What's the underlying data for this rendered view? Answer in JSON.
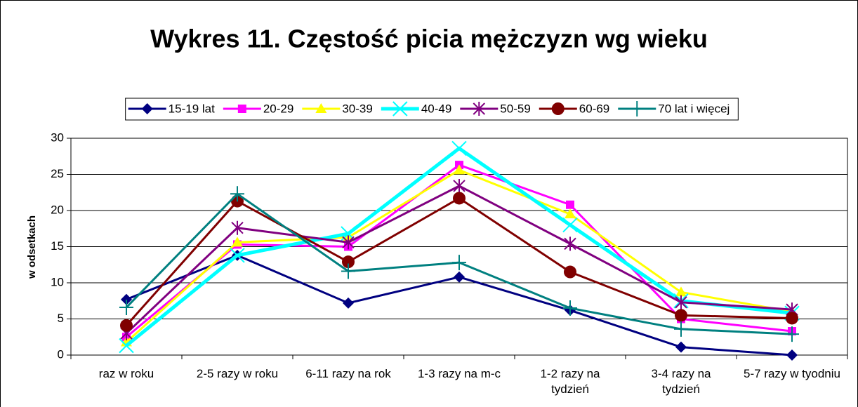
{
  "chart_data": {
    "type": "line",
    "title": "Wykres 11. Częstość picia mężczyzn wg wieku",
    "ylabel": "w odsetkach",
    "categories": [
      "raz w roku",
      "2-5 razy w roku",
      "6-11 razy na rok",
      "1-3 razy na m-c",
      "1-2 razy na tydzień",
      "3-4 razy na tydzień",
      "5-7 razy w tyodniu"
    ],
    "series": [
      {
        "name": "15-19 lat",
        "color": "#000080",
        "values": [
          7.7,
          13.8,
          7.2,
          10.8,
          6.2,
          1.1,
          0.0
        ]
      },
      {
        "name": "20-29",
        "color": "#FF00FF",
        "values": [
          2.5,
          15.3,
          15.0,
          26.3,
          20.8,
          5.0,
          3.3
        ]
      },
      {
        "name": "30-39",
        "color": "#FFFF00",
        "values": [
          1.8,
          15.6,
          16.3,
          25.6,
          19.5,
          8.7,
          6.0
        ]
      },
      {
        "name": "40-49",
        "color": "#00FFFF",
        "values": [
          1.3,
          13.8,
          16.8,
          28.6,
          18.0,
          7.5,
          5.8
        ]
      },
      {
        "name": "50-59",
        "color": "#800080",
        "values": [
          3.0,
          17.6,
          15.6,
          23.4,
          15.4,
          7.3,
          6.3
        ]
      },
      {
        "name": "60-69",
        "color": "#800000",
        "values": [
          4.1,
          21.3,
          12.9,
          21.7,
          11.5,
          5.5,
          5.1
        ]
      },
      {
        "name": "70 lat i więcej",
        "color": "#008080",
        "values": [
          6.6,
          22.3,
          11.6,
          12.8,
          6.5,
          3.6,
          2.9
        ]
      }
    ],
    "ylim": [
      0,
      30
    ],
    "yticks": [
      0,
      5,
      10,
      15,
      20,
      25,
      30
    ],
    "grid": true,
    "legend": "top"
  }
}
